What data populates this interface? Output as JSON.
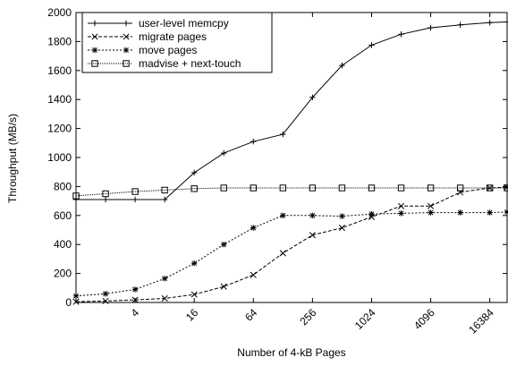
{
  "chart_data": {
    "type": "line",
    "title": "",
    "xlabel": "Number of 4-kB Pages",
    "ylabel": "Throughput (MB/s)",
    "x_scale": "log2",
    "xlim": [
      1,
      24576
    ],
    "ylim": [
      0,
      2000
    ],
    "yticks": [
      0,
      200,
      400,
      600,
      800,
      1000,
      1200,
      1400,
      1600,
      1800,
      2000
    ],
    "xticks": [
      4,
      16,
      64,
      256,
      1024,
      4096,
      16384
    ],
    "grid": false,
    "legend_position": "top-left",
    "series": [
      {
        "name": "user-level memcpy",
        "marker": "plus",
        "dash": "solid",
        "x": [
          1,
          2,
          4,
          8,
          16,
          32,
          64,
          128,
          256,
          512,
          1024,
          2048,
          4096,
          8192,
          16384,
          24576
        ],
        "y": [
          710,
          710,
          710,
          710,
          895,
          1030,
          1110,
          1160,
          1415,
          1635,
          1775,
          1850,
          1895,
          1915,
          1930,
          1935
        ]
      },
      {
        "name": "migrate pages",
        "marker": "x",
        "dash": "dashed",
        "x": [
          1,
          2,
          4,
          8,
          16,
          32,
          64,
          128,
          256,
          512,
          1024,
          2048,
          4096,
          8192,
          16384,
          24576
        ],
        "y": [
          5,
          10,
          18,
          28,
          55,
          110,
          190,
          340,
          465,
          515,
          590,
          665,
          665,
          760,
          790,
          795
        ]
      },
      {
        "name": "move pages",
        "marker": "asterisk",
        "dash": "dotted",
        "x": [
          1,
          2,
          4,
          8,
          16,
          32,
          64,
          128,
          256,
          512,
          1024,
          2048,
          4096,
          8192,
          16384,
          24576
        ],
        "y": [
          45,
          60,
          90,
          165,
          270,
          400,
          515,
          600,
          600,
          595,
          610,
          615,
          620,
          620,
          620,
          625
        ]
      },
      {
        "name": "madvise  + next-touch",
        "marker": "square",
        "dash": "fine-dotted",
        "x": [
          1,
          2,
          4,
          8,
          16,
          32,
          64,
          128,
          256,
          512,
          1024,
          2048,
          4096,
          8192,
          16384,
          24576
        ],
        "y": [
          735,
          750,
          765,
          775,
          785,
          790,
          790,
          790,
          790,
          790,
          790,
          790,
          790,
          790,
          790,
          790
        ]
      }
    ]
  }
}
